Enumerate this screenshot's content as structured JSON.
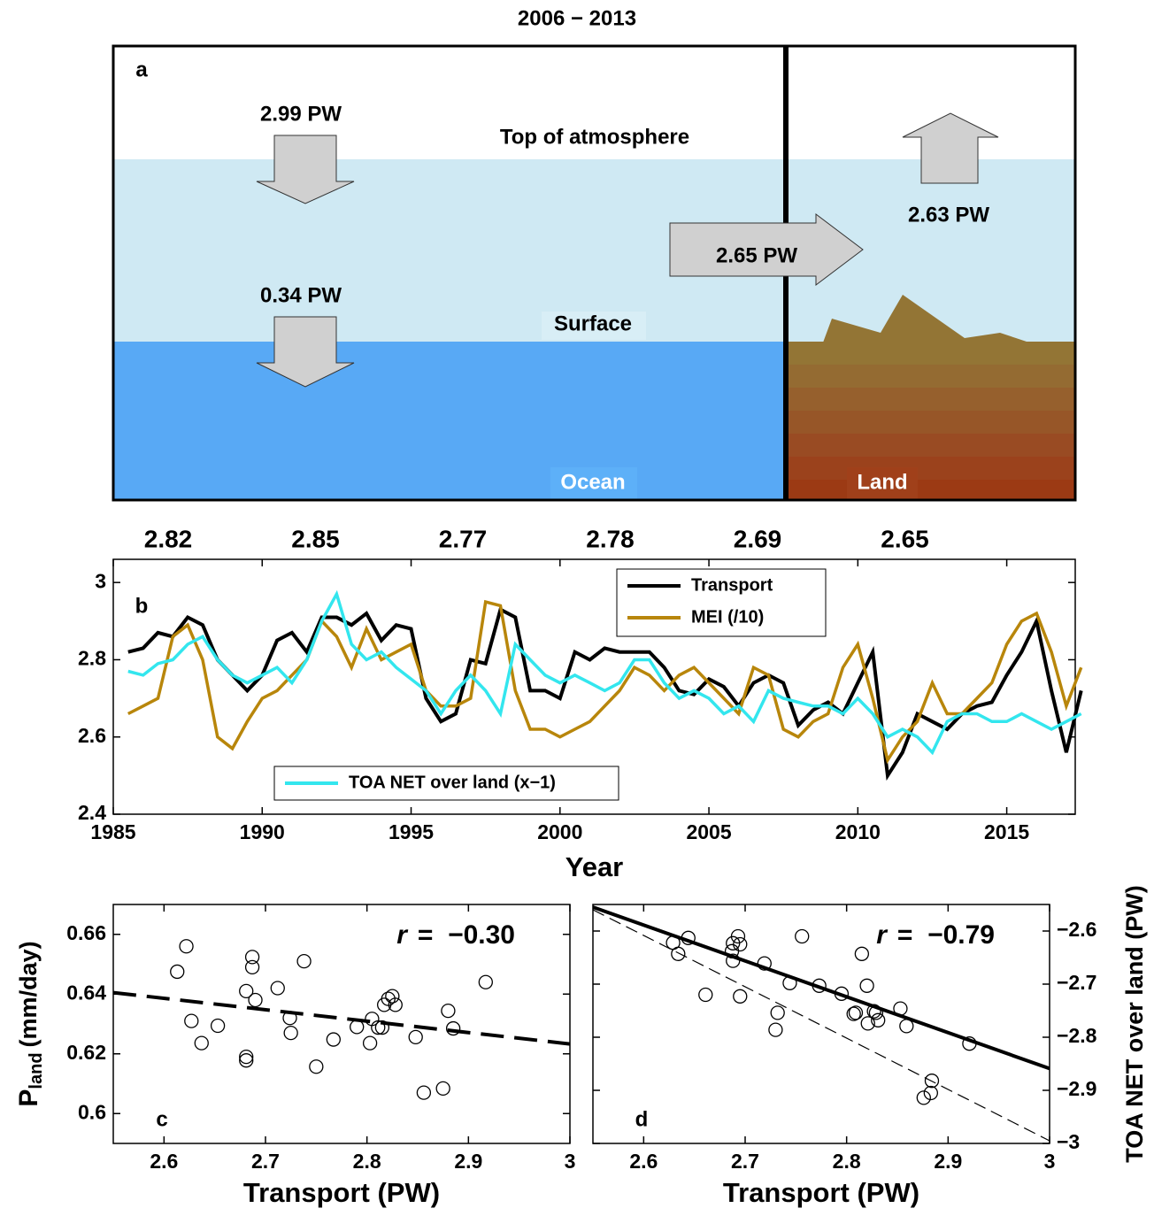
{
  "diagram": {
    "title": "2006 − 2013",
    "label": "a",
    "toa_down": "2.99 PW",
    "toa_label": "Top of atmosphere",
    "surface_down": "0.34 PW",
    "surface_label": "Surface",
    "transport": "2.65 PW",
    "land_up": "2.63 PW",
    "ocean_label": "Ocean",
    "land_label": "Land"
  },
  "chart_data": [
    {
      "type": "line",
      "label": "b",
      "xlabel": "Year",
      "period_means": [
        2.82,
        2.85,
        2.77,
        2.78,
        2.69,
        2.65
      ],
      "xlim": [
        1985,
        2017.3
      ],
      "xticks": [
        1985,
        1990,
        1995,
        2000,
        2005,
        2010,
        2015
      ],
      "ylim": [
        2.4,
        3.06
      ],
      "yticks": [
        2.4,
        2.6,
        2.8,
        3
      ],
      "grid": false,
      "x": [
        1985.5,
        1986,
        1986.5,
        1987,
        1987.5,
        1988,
        1988.5,
        1989,
        1989.5,
        1990,
        1990.5,
        1991,
        1991.5,
        1992,
        1992.5,
        1993,
        1993.5,
        1994,
        1994.5,
        1995,
        1995.5,
        1996,
        1996.5,
        1997,
        1997.5,
        1998,
        1998.5,
        1999,
        1999.5,
        2000,
        2000.5,
        2001,
        2001.5,
        2002,
        2002.5,
        2003,
        2003.5,
        2004,
        2004.5,
        2005,
        2005.5,
        2006,
        2006.5,
        2007,
        2007.5,
        2008,
        2008.5,
        2009,
        2009.5,
        2010,
        2010.5,
        2011,
        2011.5,
        2012,
        2012.5,
        2013,
        2013.5,
        2014,
        2014.5,
        2015,
        2015.5,
        2016,
        2016.5,
        2017,
        2017.5
      ],
      "series": [
        {
          "name": "Transport",
          "color": "#000000",
          "values": [
            2.82,
            2.83,
            2.87,
            2.86,
            2.91,
            2.89,
            2.8,
            2.76,
            2.72,
            2.76,
            2.85,
            2.87,
            2.82,
            2.91,
            2.91,
            2.89,
            2.92,
            2.85,
            2.89,
            2.88,
            2.7,
            2.64,
            2.66,
            2.8,
            2.79,
            2.93,
            2.91,
            2.72,
            2.72,
            2.7,
            2.82,
            2.8,
            2.83,
            2.82,
            2.82,
            2.82,
            2.78,
            2.72,
            2.71,
            2.75,
            2.73,
            2.68,
            2.74,
            2.76,
            2.74,
            2.63,
            2.67,
            2.69,
            2.66,
            2.74,
            2.82,
            2.5,
            2.56,
            2.66,
            2.64,
            2.62,
            2.66,
            2.68,
            2.69,
            2.76,
            2.82,
            2.9,
            2.72,
            2.56,
            2.72
          ]
        },
        {
          "name": "MEI (/10)",
          "color": "#b8860b",
          "values": [
            2.66,
            2.68,
            2.7,
            2.86,
            2.89,
            2.8,
            2.6,
            2.57,
            2.64,
            2.7,
            2.72,
            2.76,
            2.8,
            2.9,
            2.86,
            2.78,
            2.88,
            2.8,
            2.82,
            2.84,
            2.72,
            2.68,
            2.68,
            2.7,
            2.95,
            2.94,
            2.72,
            2.62,
            2.62,
            2.6,
            2.62,
            2.64,
            2.68,
            2.72,
            2.78,
            2.76,
            2.72,
            2.76,
            2.78,
            2.74,
            2.7,
            2.66,
            2.78,
            2.76,
            2.62,
            2.6,
            2.64,
            2.66,
            2.78,
            2.84,
            2.7,
            2.54,
            2.6,
            2.64,
            2.74,
            2.66,
            2.66,
            2.7,
            2.74,
            2.84,
            2.9,
            2.92,
            2.82,
            2.68,
            2.78
          ]
        },
        {
          "name": "TOA NET over land (x−1)",
          "color": "#33e6ee",
          "values": [
            2.77,
            2.76,
            2.79,
            2.8,
            2.84,
            2.86,
            2.8,
            2.76,
            2.74,
            2.76,
            2.78,
            2.74,
            2.8,
            2.9,
            2.97,
            2.84,
            2.8,
            2.82,
            2.78,
            2.75,
            2.72,
            2.66,
            2.72,
            2.76,
            2.72,
            2.66,
            2.84,
            2.8,
            2.76,
            2.74,
            2.76,
            2.74,
            2.72,
            2.74,
            2.8,
            2.8,
            2.74,
            2.7,
            2.72,
            2.7,
            2.66,
            2.68,
            2.64,
            2.72,
            2.7,
            2.69,
            2.68,
            2.68,
            2.66,
            2.7,
            2.66,
            2.6,
            2.62,
            2.6,
            2.56,
            2.64,
            2.66,
            2.66,
            2.64,
            2.64,
            2.66,
            2.64,
            2.62,
            2.64,
            2.66
          ]
        }
      ]
    },
    {
      "type": "scatter",
      "label": "c",
      "xlabel": "Transport (PW)",
      "ylabel": {
        "main": "P",
        "sub": "land",
        "unit": "(mm/day)"
      },
      "r_symbol": "r",
      "r_value": "=  −0.30",
      "xlim": [
        2.55,
        3
      ],
      "xticks": [
        2.6,
        2.7,
        2.8,
        2.9,
        3
      ],
      "ylim": [
        0.59,
        0.67
      ],
      "yticks": [
        0.6,
        0.62,
        0.64,
        0.66
      ],
      "y_side": "left",
      "x": [
        2.622,
        2.613,
        2.627,
        2.637,
        2.653,
        2.681,
        2.687,
        2.687,
        2.69,
        2.681,
        2.681,
        2.712,
        2.724,
        2.725,
        2.738,
        2.75,
        2.767,
        2.79,
        2.803,
        2.805,
        2.811,
        2.815,
        2.817,
        2.821,
        2.825,
        2.828,
        2.848,
        2.856,
        2.875,
        2.88,
        2.885,
        2.917
      ],
      "y": [
        0.656,
        0.6475,
        0.631,
        0.6236,
        0.6294,
        0.641,
        0.6524,
        0.649,
        0.638,
        0.619,
        0.6178,
        0.642,
        0.632,
        0.627,
        0.651,
        0.6157,
        0.6248,
        0.629,
        0.6236,
        0.6317,
        0.6288,
        0.6288,
        0.6364,
        0.6384,
        0.6393,
        0.6364,
        0.6256,
        0.607,
        0.6084,
        0.6344,
        0.6285,
        0.644
      ],
      "fit_lines": [
        {
          "style": "dashed",
          "x": [
            2.55,
            3
          ],
          "y": [
            0.6405,
            0.6233
          ]
        }
      ]
    },
    {
      "type": "scatter",
      "label": "d",
      "xlabel": "Transport (PW)",
      "ylabel": "TOA NET over land (PW)",
      "r_symbol": "r",
      "r_value": "=  −0.79",
      "xlim": [
        2.55,
        3
      ],
      "xticks": [
        2.6,
        2.7,
        2.8,
        2.9,
        3
      ],
      "ylim": [
        -3,
        -2.55
      ],
      "y_side": "right",
      "yticks": [
        {
          "value": -3,
          "label": "−3"
        },
        {
          "value": -2.9,
          "label": "−2.9"
        },
        {
          "value": -2.8,
          "label": "−2.8"
        },
        {
          "value": -2.7,
          "label": "−2.7"
        },
        {
          "value": -2.6,
          "label": "−2.6"
        }
      ],
      "x": [
        2.629,
        2.634,
        2.644,
        2.661,
        2.687,
        2.688,
        2.688,
        2.693,
        2.695,
        2.695,
        2.719,
        2.732,
        2.73,
        2.744,
        2.756,
        2.773,
        2.795,
        2.807,
        2.809,
        2.815,
        2.82,
        2.821,
        2.827,
        2.829,
        2.831,
        2.853,
        2.859,
        2.876,
        2.883,
        2.884,
        2.921
      ],
      "y": [
        -2.622,
        -2.643,
        -2.613,
        -2.72,
        -2.638,
        -2.623,
        -2.656,
        -2.61,
        -2.723,
        -2.625,
        -2.661,
        -2.754,
        -2.786,
        -2.698,
        -2.61,
        -2.703,
        -2.718,
        -2.756,
        -2.754,
        -2.643,
        -2.703,
        -2.774,
        -2.751,
        -2.754,
        -2.768,
        -2.746,
        -2.779,
        -2.914,
        -2.905,
        -2.882,
        -2.812
      ],
      "fit_lines": [
        {
          "style": "solid",
          "x": [
            2.55,
            3
          ],
          "y": [
            -2.555,
            -2.859
          ]
        },
        {
          "style": "thin-dashed",
          "x": [
            2.55,
            3
          ],
          "y": [
            -2.56,
            -2.995
          ]
        }
      ]
    }
  ]
}
